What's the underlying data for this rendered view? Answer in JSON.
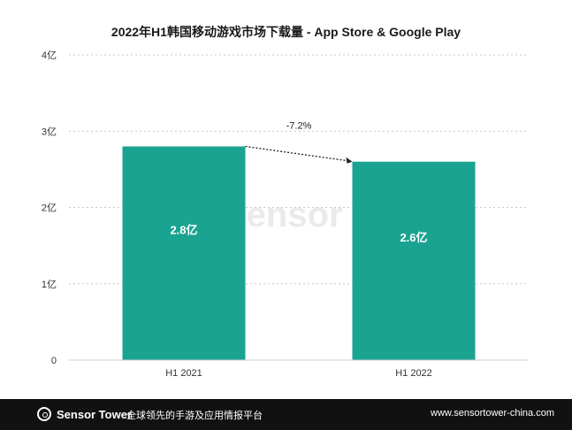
{
  "chart_data": {
    "type": "bar",
    "title": "2022年H1韩国移动游戏市场下载量 - App Store & Google Play",
    "categories": [
      "H1 2021",
      "H1 2022"
    ],
    "values": [
      2.8,
      2.6
    ],
    "value_labels": [
      "2.8亿",
      "2.6亿"
    ],
    "y_ticks": [
      0,
      1,
      2,
      3,
      4
    ],
    "y_tick_labels": [
      "0",
      "1亿",
      "2亿",
      "3亿",
      "4亿"
    ],
    "ylim": [
      0,
      4
    ],
    "grid": true,
    "bar_color": "#1aa391",
    "annotation": {
      "text": "-7.2%",
      "from": "H1 2021",
      "to": "H1 2022"
    },
    "watermark": "Sensor Tower"
  },
  "footer": {
    "brand": "Sensor Tower",
    "tagline": "全球领先的手游及应用情报平台",
    "url": "www.sensortower-china.com"
  }
}
